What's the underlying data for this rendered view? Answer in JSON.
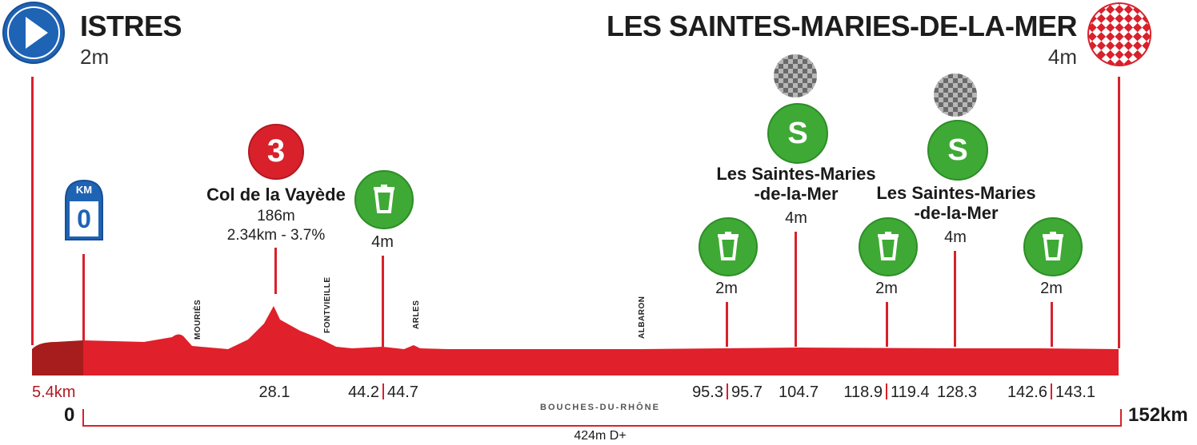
{
  "start": {
    "name": "ISTRES",
    "altitude": "2m"
  },
  "finish": {
    "name": "LES SAINTES-MARIES-DE-LA-MER",
    "altitude": "4m"
  },
  "km_marker": {
    "label": "KM",
    "value": "0"
  },
  "climb": {
    "category": "3",
    "name": "Col de la Vayède",
    "altitude": "186m",
    "stats": "2.34km - 3.7%"
  },
  "places": [
    "MOURIÈS",
    "FONTVIEILLE",
    "ARLES",
    "ALBARON"
  ],
  "feed_altitudes": [
    "4m",
    "2m",
    "2m",
    "2m"
  ],
  "sprints": [
    {
      "letter": "S",
      "name_line1": "Les Saintes-Maries",
      "name_line2": "-de-la-Mer",
      "altitude": "4m"
    },
    {
      "letter": "S",
      "name_line1": "Les Saintes-Maries",
      "name_line2": "-de-la-Mer",
      "altitude": "4m"
    }
  ],
  "km_labels": [
    "28.1",
    "44.2",
    "44.7",
    "95.3",
    "95.7",
    "104.7",
    "118.9",
    "119.4",
    "128.3",
    "142.6",
    "143.1"
  ],
  "neutral_distance": "5.4km",
  "start_km": "0",
  "end_km": "152km",
  "region": "BOUCHES-DU-RHÔNE",
  "elevation_gain": "424m D+",
  "chart_data": {
    "type": "area",
    "x": [
      0,
      5.4,
      15,
      22,
      24,
      28.1,
      31,
      36,
      44.2,
      52,
      60,
      95.3,
      104.7,
      118.9,
      128.3,
      143.1,
      152
    ],
    "y": [
      3,
      5,
      20,
      12,
      60,
      186,
      90,
      25,
      4,
      8,
      4,
      2,
      4,
      2,
      4,
      2,
      4
    ],
    "xlabel": "",
    "ylabel": "",
    "colors": {
      "profile": "#e0202a",
      "neutral": "#a71c1c",
      "dark_text": "#1d1d1d"
    }
  }
}
